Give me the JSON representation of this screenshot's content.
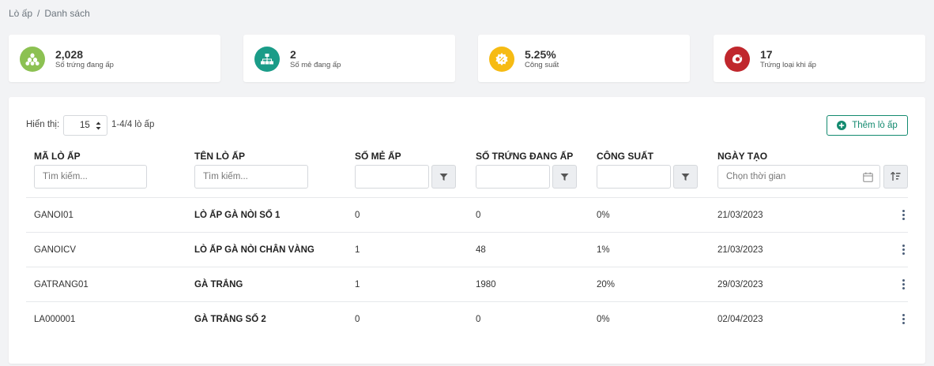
{
  "breadcrumb": {
    "root": "Lò ấp",
    "separator": "/",
    "current": "Danh sách"
  },
  "stats": [
    {
      "value": "2,028",
      "label": "Số trứng đang ấp",
      "color": "#8cc152",
      "icon": "eggs-icon"
    },
    {
      "value": "2",
      "label": "Số mẻ đang ấp",
      "color": "#1a9c88",
      "icon": "sitemap-icon"
    },
    {
      "value": "5.25%",
      "label": "Công suất",
      "color": "#f6bb13",
      "icon": "percent-icon"
    },
    {
      "value": "17",
      "label": "Trứng loại khi ấp",
      "color": "#c0272d",
      "icon": "broken-egg-icon"
    }
  ],
  "toolbar": {
    "show_label": "Hiển thị:",
    "page_size": "15",
    "range": "1-4/4 lò ấp",
    "add_label": "Thêm lò ấp"
  },
  "columns": {
    "code": "Mã lò ấp",
    "name": "Tên lò ấp",
    "batches": "Số mẻ ấp",
    "eggs": "Số trứng đang ấp",
    "capacity": "Công suất",
    "created": "Ngày tạo"
  },
  "filters": {
    "code_placeholder": "Tìm kiếm...",
    "name_placeholder": "Tìm kiếm...",
    "date_placeholder": "Chọn thời gian"
  },
  "rows": [
    {
      "code": "GANOI01",
      "name": "LÒ ẤP GÀ NÒI SỐ 1",
      "batches": "0",
      "eggs": "0",
      "capacity": "0%",
      "created": "21/03/2023"
    },
    {
      "code": "GANOICV",
      "name": "LÒ ẤP GÀ NÒI CHÂN VÀNG",
      "batches": "1",
      "eggs": "48",
      "capacity": "1%",
      "created": "21/03/2023"
    },
    {
      "code": "GATRANG01",
      "name": "GÀ TRẮNG",
      "batches": "1",
      "eggs": "1980",
      "capacity": "20%",
      "created": "29/03/2023"
    },
    {
      "code": "LA000001",
      "name": "GÀ TRẮNG SỐ 2",
      "batches": "0",
      "eggs": "0",
      "capacity": "0%",
      "created": "02/04/2023"
    }
  ]
}
